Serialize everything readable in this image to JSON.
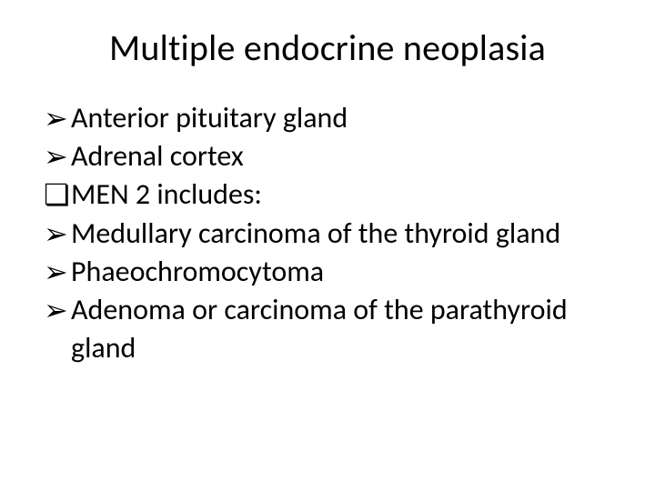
{
  "title": "Multiple endocrine neoplasia",
  "bullets": {
    "arrow_glyph": "➢",
    "square_glyph": "❏"
  },
  "lines": [
    {
      "marker_key": "arrow_glyph",
      "text": "Anterior pituitary gland"
    },
    {
      "marker_key": "arrow_glyph",
      "text": "Adrenal cortex"
    },
    {
      "marker_key": "square_glyph",
      "text": "MEN 2 includes:"
    },
    {
      "marker_key": "arrow_glyph",
      "text": "Medullary carcinoma of the thyroid gland"
    },
    {
      "marker_key": "arrow_glyph",
      "text": "Phaeochromocytoma"
    },
    {
      "marker_key": "arrow_glyph",
      "text": "Adenoma or carcinoma of the parathyroid"
    }
  ],
  "continuation": "gland",
  "colors": {
    "background": "#ffffff",
    "text": "#000000"
  },
  "fontsizes": {
    "title": 40,
    "body": 32
  }
}
